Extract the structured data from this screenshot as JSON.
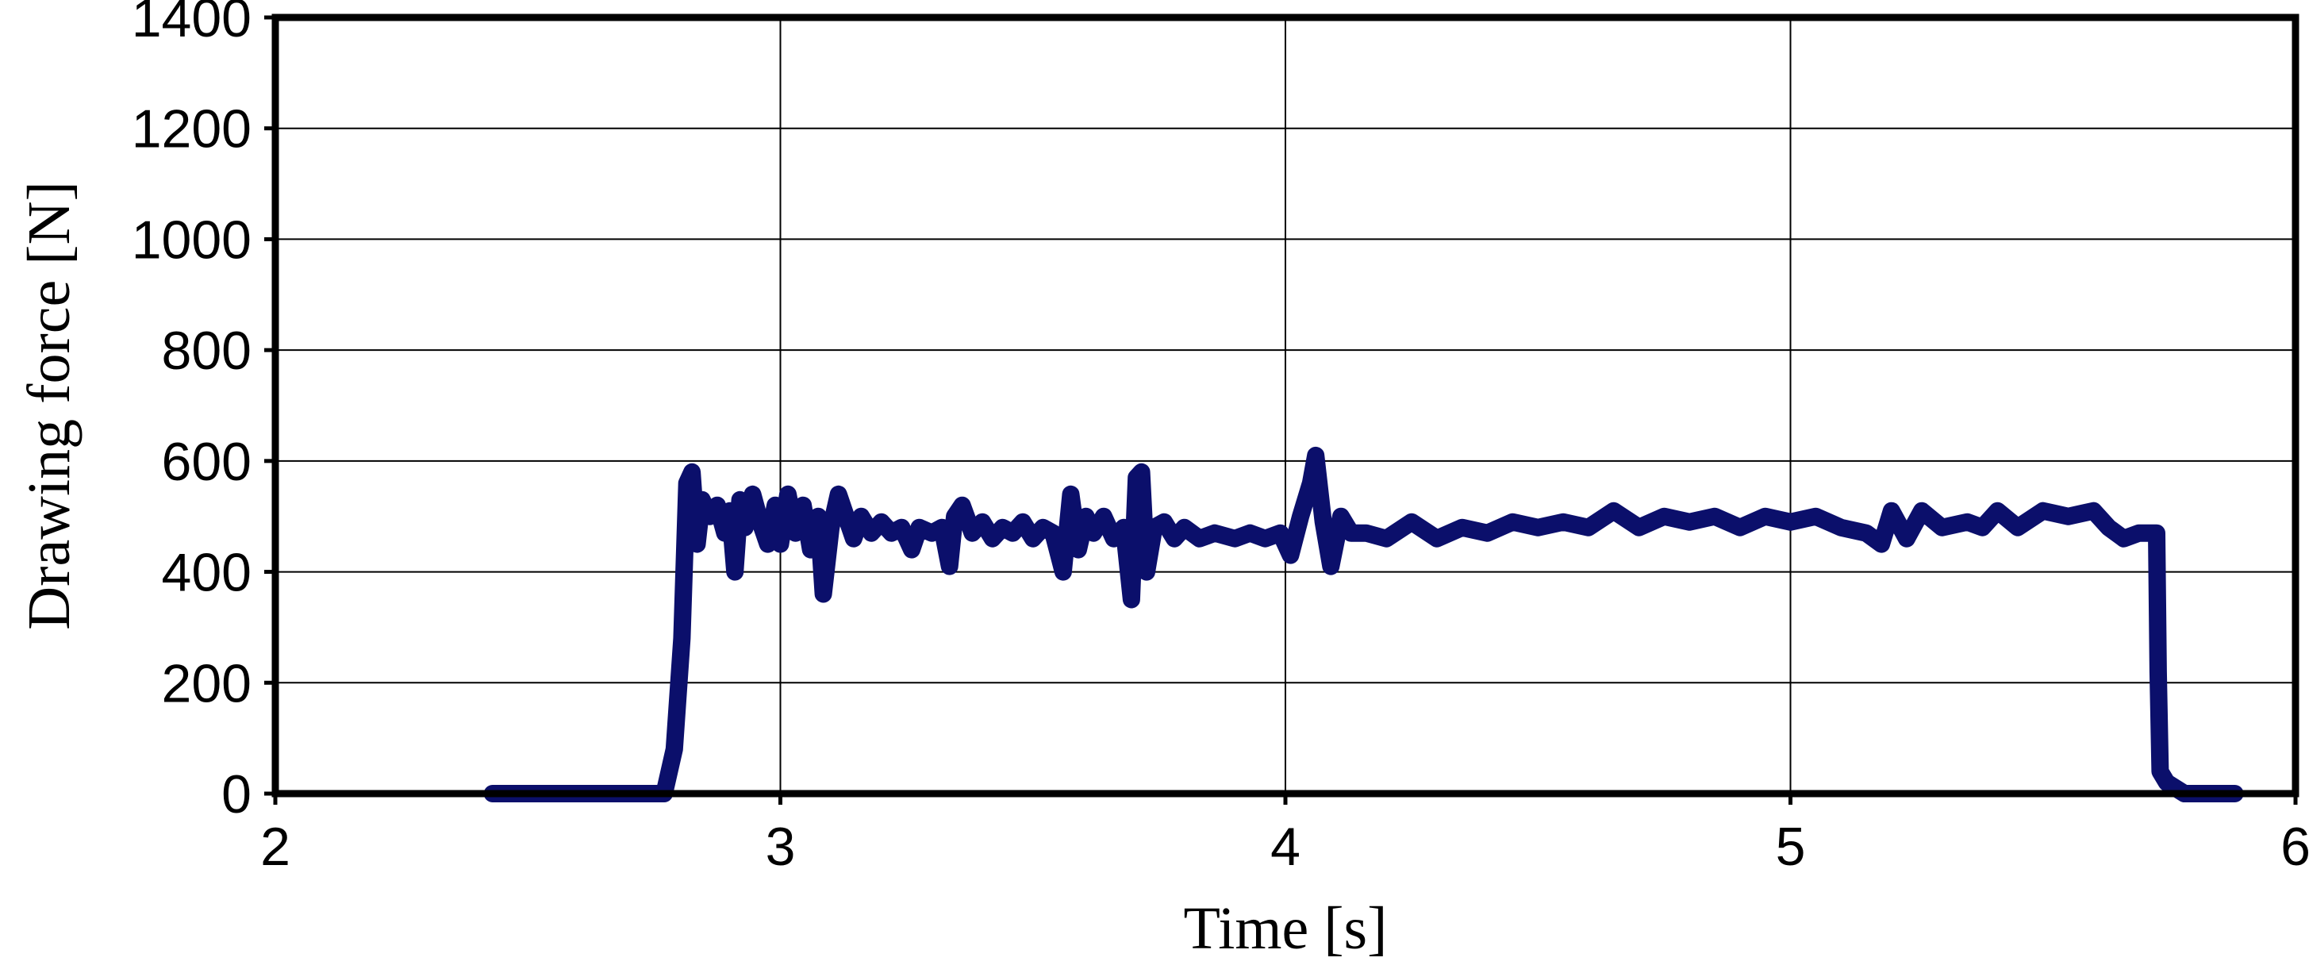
{
  "chart_data": {
    "type": "line",
    "title": "",
    "xlabel": "Time [s]",
    "ylabel": "Drawing force [N]",
    "xlim": [
      2,
      6
    ],
    "ylim": [
      0,
      1400
    ],
    "xticks": [
      2,
      3,
      4,
      5,
      6
    ],
    "yticks": [
      0,
      200,
      400,
      600,
      800,
      1000,
      1200,
      1400
    ],
    "grid": true,
    "legend": "none",
    "colors": {
      "series": "#0b0f6b",
      "axis": "#000000"
    },
    "series": [
      {
        "points": [
          [
            2.43,
            0
          ],
          [
            2.6,
            0
          ],
          [
            2.77,
            0
          ],
          [
            2.79,
            80
          ],
          [
            2.805,
            280
          ],
          [
            2.815,
            560
          ],
          [
            2.825,
            580
          ],
          [
            2.835,
            450
          ],
          [
            2.845,
            530
          ],
          [
            2.86,
            500
          ],
          [
            2.875,
            520
          ],
          [
            2.89,
            470
          ],
          [
            2.9,
            510
          ],
          [
            2.91,
            400
          ],
          [
            2.92,
            530
          ],
          [
            2.93,
            480
          ],
          [
            2.945,
            540
          ],
          [
            2.96,
            490
          ],
          [
            2.975,
            450
          ],
          [
            2.99,
            520
          ],
          [
            3.0,
            450
          ],
          [
            3.015,
            540
          ],
          [
            3.03,
            470
          ],
          [
            3.045,
            520
          ],
          [
            3.06,
            440
          ],
          [
            3.075,
            500
          ],
          [
            3.085,
            360
          ],
          [
            3.1,
            480
          ],
          [
            3.115,
            540
          ],
          [
            3.13,
            500
          ],
          [
            3.145,
            460
          ],
          [
            3.16,
            500
          ],
          [
            3.18,
            470
          ],
          [
            3.2,
            490
          ],
          [
            3.22,
            470
          ],
          [
            3.24,
            480
          ],
          [
            3.26,
            440
          ],
          [
            3.275,
            480
          ],
          [
            3.3,
            470
          ],
          [
            3.32,
            480
          ],
          [
            3.335,
            410
          ],
          [
            3.345,
            500
          ],
          [
            3.36,
            520
          ],
          [
            3.38,
            470
          ],
          [
            3.4,
            490
          ],
          [
            3.42,
            460
          ],
          [
            3.44,
            480
          ],
          [
            3.46,
            470
          ],
          [
            3.48,
            490
          ],
          [
            3.5,
            460
          ],
          [
            3.52,
            480
          ],
          [
            3.54,
            470
          ],
          [
            3.56,
            400
          ],
          [
            3.575,
            540
          ],
          [
            3.59,
            440
          ],
          [
            3.605,
            500
          ],
          [
            3.62,
            470
          ],
          [
            3.64,
            500
          ],
          [
            3.66,
            460
          ],
          [
            3.68,
            480
          ],
          [
            3.695,
            350
          ],
          [
            3.705,
            570
          ],
          [
            3.715,
            580
          ],
          [
            3.725,
            400
          ],
          [
            3.74,
            480
          ],
          [
            3.76,
            490
          ],
          [
            3.78,
            460
          ],
          [
            3.8,
            480
          ],
          [
            3.83,
            460
          ],
          [
            3.86,
            470
          ],
          [
            3.9,
            460
          ],
          [
            3.93,
            470
          ],
          [
            3.96,
            460
          ],
          [
            3.99,
            470
          ],
          [
            4.01,
            430
          ],
          [
            4.03,
            500
          ],
          [
            4.05,
            560
          ],
          [
            4.06,
            610
          ],
          [
            4.075,
            490
          ],
          [
            4.09,
            410
          ],
          [
            4.11,
            500
          ],
          [
            4.13,
            470
          ],
          [
            4.16,
            470
          ],
          [
            4.2,
            460
          ],
          [
            4.25,
            490
          ],
          [
            4.3,
            460
          ],
          [
            4.35,
            480
          ],
          [
            4.4,
            470
          ],
          [
            4.45,
            490
          ],
          [
            4.5,
            480
          ],
          [
            4.55,
            490
          ],
          [
            4.6,
            480
          ],
          [
            4.65,
            510
          ],
          [
            4.7,
            480
          ],
          [
            4.75,
            500
          ],
          [
            4.8,
            490
          ],
          [
            4.85,
            500
          ],
          [
            4.9,
            480
          ],
          [
            4.95,
            500
          ],
          [
            5.0,
            490
          ],
          [
            5.05,
            500
          ],
          [
            5.1,
            480
          ],
          [
            5.15,
            470
          ],
          [
            5.18,
            450
          ],
          [
            5.2,
            510
          ],
          [
            5.23,
            460
          ],
          [
            5.26,
            510
          ],
          [
            5.3,
            480
          ],
          [
            5.35,
            490
          ],
          [
            5.38,
            480
          ],
          [
            5.41,
            510
          ],
          [
            5.45,
            480
          ],
          [
            5.5,
            510
          ],
          [
            5.55,
            500
          ],
          [
            5.6,
            510
          ],
          [
            5.63,
            480
          ],
          [
            5.66,
            460
          ],
          [
            5.69,
            470
          ],
          [
            5.725,
            470
          ],
          [
            5.728,
            220
          ],
          [
            5.732,
            40
          ],
          [
            5.745,
            20
          ],
          [
            5.78,
            0
          ],
          [
            5.88,
            0
          ]
        ]
      }
    ]
  }
}
